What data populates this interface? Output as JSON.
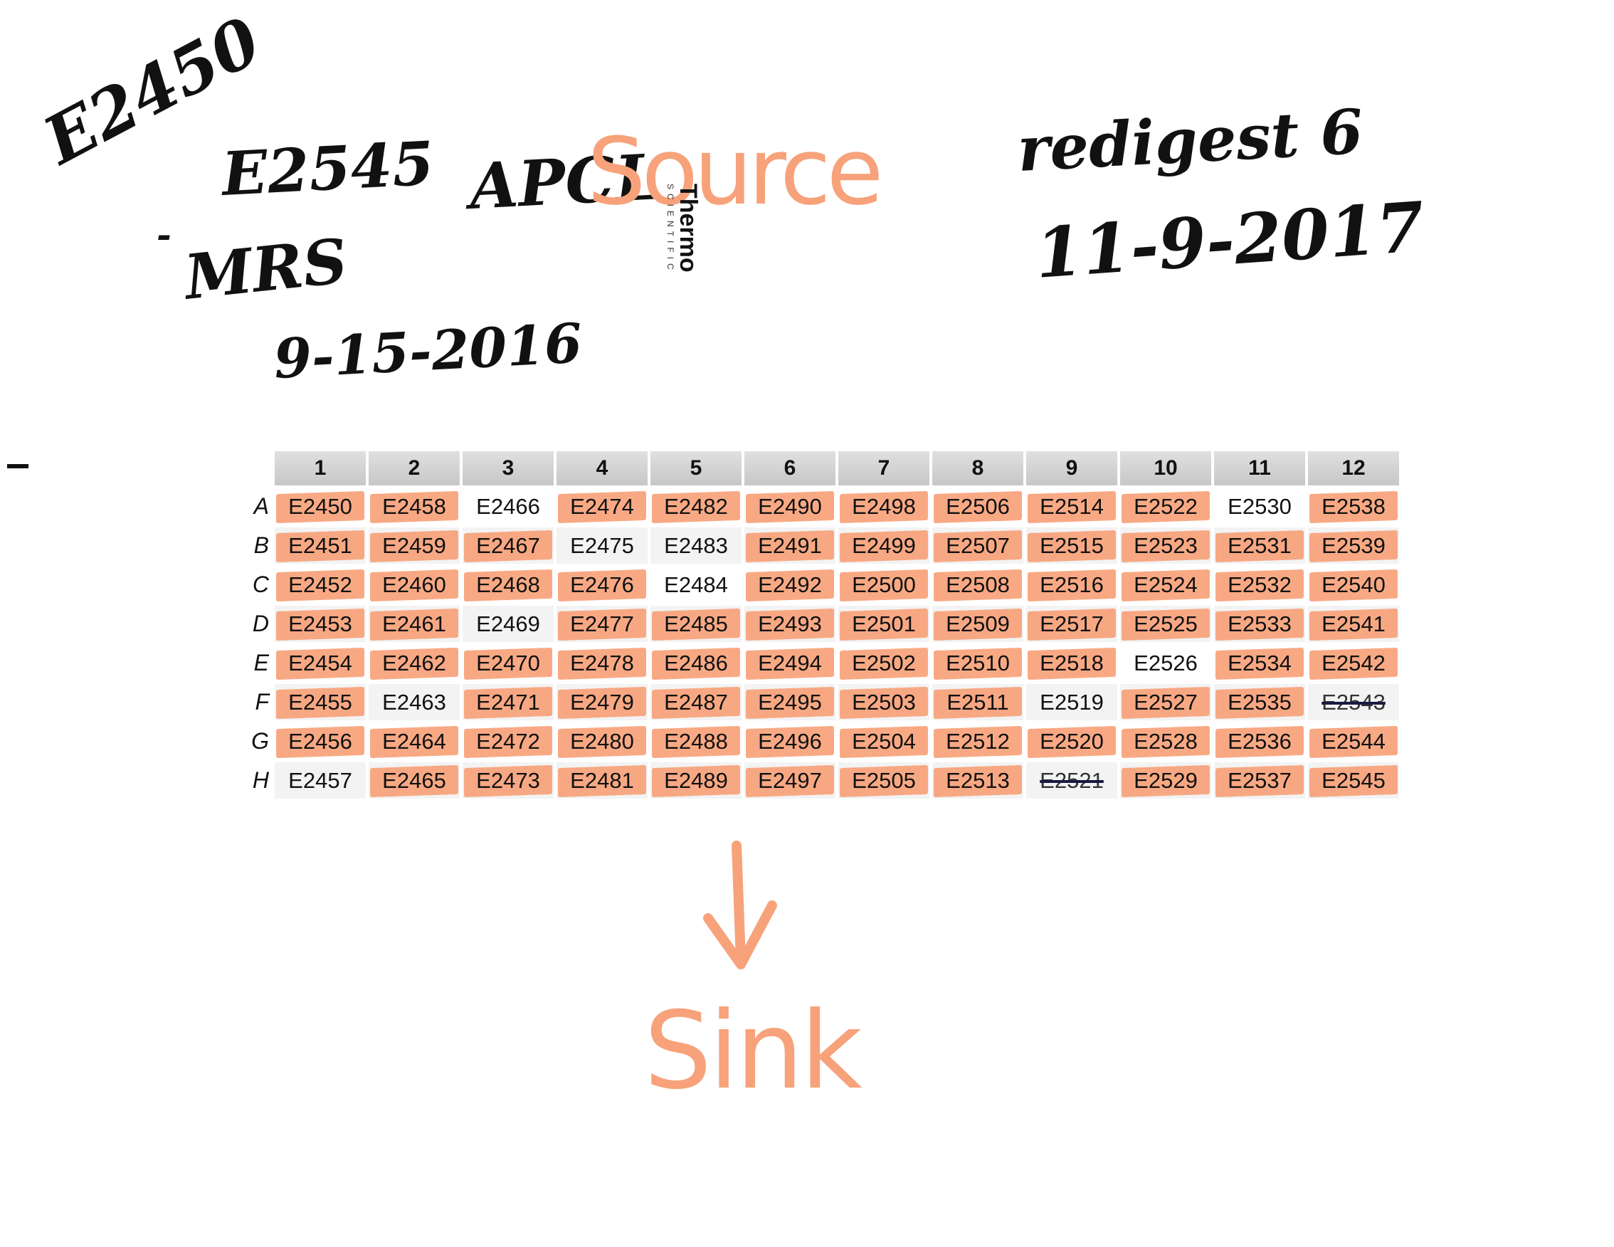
{
  "notes": {
    "id_top": "E2450",
    "id_bottom": "E2545",
    "dash": "-",
    "lab_code": "APCL",
    "source_label": "Source",
    "initials": "MRS",
    "date_original": "9-15-2016",
    "redigest": "redigest 6",
    "date_redigest": "11-9-2017",
    "sink_label": "Sink"
  },
  "brand": {
    "name": "Thermo",
    "sub": "SCIENTIFIC"
  },
  "colors": {
    "highlight": "#f7a27a",
    "ink": "#111111",
    "strike": "#1a1a40"
  },
  "plate": {
    "columns": [
      "1",
      "2",
      "3",
      "4",
      "5",
      "6",
      "7",
      "8",
      "9",
      "10",
      "11",
      "12"
    ],
    "rows": [
      {
        "label": "A",
        "wells": [
          {
            "id": "E2450",
            "hl": true
          },
          {
            "id": "E2458",
            "hl": true
          },
          {
            "id": "E2466",
            "hl": false
          },
          {
            "id": "E2474",
            "hl": true
          },
          {
            "id": "E2482",
            "hl": true
          },
          {
            "id": "E2490",
            "hl": true
          },
          {
            "id": "E2498",
            "hl": true
          },
          {
            "id": "E2506",
            "hl": true
          },
          {
            "id": "E2514",
            "hl": true
          },
          {
            "id": "E2522",
            "hl": true
          },
          {
            "id": "E2530",
            "hl": false
          },
          {
            "id": "E2538",
            "hl": true
          }
        ]
      },
      {
        "label": "B",
        "wells": [
          {
            "id": "E2451",
            "hl": true
          },
          {
            "id": "E2459",
            "hl": true
          },
          {
            "id": "E2467",
            "hl": true
          },
          {
            "id": "E2475",
            "hl": false
          },
          {
            "id": "E2483",
            "hl": false
          },
          {
            "id": "E2491",
            "hl": true
          },
          {
            "id": "E2499",
            "hl": true
          },
          {
            "id": "E2507",
            "hl": true
          },
          {
            "id": "E2515",
            "hl": true
          },
          {
            "id": "E2523",
            "hl": true
          },
          {
            "id": "E2531",
            "hl": true
          },
          {
            "id": "E2539",
            "hl": true
          }
        ]
      },
      {
        "label": "C",
        "wells": [
          {
            "id": "E2452",
            "hl": true
          },
          {
            "id": "E2460",
            "hl": true
          },
          {
            "id": "E2468",
            "hl": true
          },
          {
            "id": "E2476",
            "hl": true
          },
          {
            "id": "E2484",
            "hl": false
          },
          {
            "id": "E2492",
            "hl": true
          },
          {
            "id": "E2500",
            "hl": true
          },
          {
            "id": "E2508",
            "hl": true
          },
          {
            "id": "E2516",
            "hl": true
          },
          {
            "id": "E2524",
            "hl": true
          },
          {
            "id": "E2532",
            "hl": true
          },
          {
            "id": "E2540",
            "hl": true
          }
        ]
      },
      {
        "label": "D",
        "wells": [
          {
            "id": "E2453",
            "hl": true
          },
          {
            "id": "E2461",
            "hl": true
          },
          {
            "id": "E2469",
            "hl": false
          },
          {
            "id": "E2477",
            "hl": true
          },
          {
            "id": "E2485",
            "hl": true
          },
          {
            "id": "E2493",
            "hl": true
          },
          {
            "id": "E2501",
            "hl": true
          },
          {
            "id": "E2509",
            "hl": true
          },
          {
            "id": "E2517",
            "hl": true
          },
          {
            "id": "E2525",
            "hl": true
          },
          {
            "id": "E2533",
            "hl": true
          },
          {
            "id": "E2541",
            "hl": true
          }
        ]
      },
      {
        "label": "E",
        "wells": [
          {
            "id": "E2454",
            "hl": true
          },
          {
            "id": "E2462",
            "hl": true
          },
          {
            "id": "E2470",
            "hl": true
          },
          {
            "id": "E2478",
            "hl": true
          },
          {
            "id": "E2486",
            "hl": true
          },
          {
            "id": "E2494",
            "hl": true
          },
          {
            "id": "E2502",
            "hl": true
          },
          {
            "id": "E2510",
            "hl": true
          },
          {
            "id": "E2518",
            "hl": true
          },
          {
            "id": "E2526",
            "hl": false
          },
          {
            "id": "E2534",
            "hl": true
          },
          {
            "id": "E2542",
            "hl": true
          }
        ]
      },
      {
        "label": "F",
        "wells": [
          {
            "id": "E2455",
            "hl": true
          },
          {
            "id": "E2463",
            "hl": false
          },
          {
            "id": "E2471",
            "hl": true
          },
          {
            "id": "E2479",
            "hl": true
          },
          {
            "id": "E2487",
            "hl": true
          },
          {
            "id": "E2495",
            "hl": true
          },
          {
            "id": "E2503",
            "hl": true
          },
          {
            "id": "E2511",
            "hl": true
          },
          {
            "id": "E2519",
            "hl": false
          },
          {
            "id": "E2527",
            "hl": true
          },
          {
            "id": "E2535",
            "hl": true
          },
          {
            "id": "E2543",
            "hl": false,
            "struck": true
          }
        ]
      },
      {
        "label": "G",
        "wells": [
          {
            "id": "E2456",
            "hl": true
          },
          {
            "id": "E2464",
            "hl": true
          },
          {
            "id": "E2472",
            "hl": true
          },
          {
            "id": "E2480",
            "hl": true
          },
          {
            "id": "E2488",
            "hl": true
          },
          {
            "id": "E2496",
            "hl": true
          },
          {
            "id": "E2504",
            "hl": true
          },
          {
            "id": "E2512",
            "hl": true
          },
          {
            "id": "E2520",
            "hl": true
          },
          {
            "id": "E2528",
            "hl": true
          },
          {
            "id": "E2536",
            "hl": true
          },
          {
            "id": "E2544",
            "hl": true
          }
        ]
      },
      {
        "label": "H",
        "wells": [
          {
            "id": "E2457",
            "hl": false
          },
          {
            "id": "E2465",
            "hl": true
          },
          {
            "id": "E2473",
            "hl": true
          },
          {
            "id": "E2481",
            "hl": true
          },
          {
            "id": "E2489",
            "hl": true
          },
          {
            "id": "E2497",
            "hl": true
          },
          {
            "id": "E2505",
            "hl": true
          },
          {
            "id": "E2513",
            "hl": true
          },
          {
            "id": "E2521",
            "hl": false,
            "struck": true
          },
          {
            "id": "E2529",
            "hl": true
          },
          {
            "id": "E2537",
            "hl": true
          },
          {
            "id": "E2545",
            "hl": true
          }
        ]
      }
    ]
  }
}
